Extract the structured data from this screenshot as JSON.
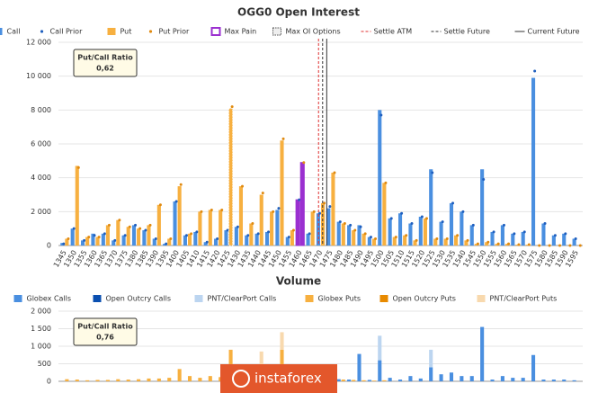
{
  "chart_data": [
    {
      "type": "bar",
      "title": "OGG0 Open Interest",
      "x": [
        1345,
        1350,
        1355,
        1360,
        1365,
        1370,
        1375,
        1380,
        1385,
        1390,
        1395,
        1400,
        1405,
        1410,
        1415,
        1420,
        1425,
        1430,
        1435,
        1440,
        1445,
        1450,
        1455,
        1460,
        1465,
        1470,
        1475,
        1480,
        1485,
        1490,
        1495,
        1500,
        1505,
        1510,
        1515,
        1520,
        1525,
        1530,
        1535,
        1540,
        1545,
        1550,
        1555,
        1560,
        1565,
        1570,
        1575,
        1580,
        1585,
        1590,
        1595
      ],
      "xlim": [
        1342,
        1598
      ],
      "ylim": [
        0,
        12000
      ],
      "yticks": [
        0,
        {
          "value": 2000,
          "label": "2 000"
        },
        {
          "value": 4000,
          "label": "4 000"
        },
        {
          "value": 6000,
          "label": "6 000"
        },
        {
          "value": 8000,
          "label": "8 000"
        },
        {
          "value": 10000,
          "label": "10 000"
        },
        {
          "value": 12000,
          "label": "12 000"
        }
      ],
      "grid": true,
      "series": [
        {
          "name": "Call",
          "color": "#4a8fe0",
          "style": "bar",
          "side": 0,
          "values": [
            150,
            1000,
            300,
            700,
            700,
            300,
            600,
            1200,
            900,
            400,
            100,
            2600,
            600,
            800,
            200,
            400,
            900,
            1100,
            600,
            700,
            800,
            2100,
            500,
            2700,
            700,
            1900,
            2200,
            1400,
            1200,
            1200,
            500,
            8000,
            1600,
            1900,
            1300,
            1700,
            4500,
            1400,
            2500,
            2000,
            1200,
            4500,
            800,
            1200,
            700,
            800,
            9900,
            1300,
            600,
            700,
            400
          ]
        },
        {
          "name": "Call Prior",
          "color": "#1f5fbf",
          "style": "dot",
          "side": 0,
          "values": [
            100,
            1000,
            300,
            600,
            700,
            300,
            600,
            1200,
            900,
            400,
            100,
            2600,
            600,
            800,
            200,
            400,
            900,
            1100,
            600,
            700,
            800,
            2200,
            500,
            2700,
            700,
            1900,
            2300,
            1400,
            1200,
            1100,
            500,
            7700,
            1600,
            1900,
            1300,
            1700,
            4300,
            1400,
            2500,
            2000,
            1200,
            3900,
            800,
            1200,
            700,
            800,
            10300,
            1300,
            600,
            700,
            400
          ]
        },
        {
          "name": "Put",
          "color": "#f7b040",
          "style": "bar",
          "side": 1,
          "values": [
            400,
            4700,
            500,
            500,
            1200,
            1500,
            1100,
            1000,
            1200,
            2400,
            400,
            3500,
            700,
            2000,
            2100,
            2100,
            8100,
            3500,
            1300,
            3000,
            2000,
            6200,
            900,
            4900,
            2000,
            2500,
            4300,
            1300,
            900,
            700,
            400,
            3700,
            500,
            600,
            300,
            1600,
            400,
            400,
            600,
            300,
            100,
            200,
            100,
            100,
            50,
            50,
            0,
            0,
            0,
            0,
            0
          ]
        },
        {
          "name": "Put Prior",
          "color": "#e08a10",
          "style": "dot",
          "side": 1,
          "values": [
            400,
            4600,
            500,
            500,
            1200,
            1500,
            1100,
            1000,
            1200,
            2400,
            400,
            3600,
            700,
            2000,
            2100,
            2100,
            8200,
            3500,
            1300,
            3100,
            2000,
            6300,
            900,
            4900,
            2000,
            2500,
            4300,
            1300,
            900,
            700,
            400,
            3700,
            500,
            600,
            300,
            1600,
            400,
            400,
            600,
            300,
            100,
            200,
            100,
            100,
            50,
            50,
            0,
            0,
            0,
            0,
            0
          ]
        }
      ],
      "max_pain": {
        "name": "Max Pain",
        "color": "#9b30d0",
        "x": 1460
      },
      "max_oi": {
        "name": "Max OI Options",
        "color": "#555555",
        "x": 1425
      },
      "lines": [
        {
          "name": "Settle ATM",
          "color": "#e03030",
          "dash": "3,2",
          "x": 1469
        },
        {
          "name": "Settle Future",
          "color": "#333333",
          "dash": "3,2",
          "x": 1471
        },
        {
          "name": "Current Future",
          "color": "#333333",
          "dash": "",
          "x": 1473
        }
      ],
      "ratio": {
        "label": "Put/Call Ratio",
        "value": "0,62"
      }
    },
    {
      "type": "stacked_bar",
      "title": "Volume",
      "x": [
        1345,
        1350,
        1355,
        1360,
        1365,
        1370,
        1375,
        1380,
        1385,
        1390,
        1395,
        1400,
        1405,
        1410,
        1415,
        1420,
        1425,
        1430,
        1435,
        1440,
        1445,
        1450,
        1455,
        1460,
        1465,
        1470,
        1475,
        1480,
        1485,
        1490,
        1495,
        1500,
        1505,
        1510,
        1515,
        1520,
        1525,
        1530,
        1535,
        1540,
        1545,
        1550,
        1555,
        1560,
        1565,
        1570,
        1575,
        1580,
        1585,
        1590,
        1595
      ],
      "xlim": [
        1342,
        1598
      ],
      "ylim": [
        0,
        2000
      ],
      "yticks": [
        0,
        500,
        {
          "value": 1000,
          "label": "1 000"
        },
        {
          "value": 1500,
          "label": "1 500"
        },
        {
          "value": 2000,
          "label": "2 000"
        }
      ],
      "grid": true,
      "series": [
        {
          "name": "Globex Calls",
          "color": "#4a8fe0",
          "side": 0,
          "values": [
            0,
            0,
            0,
            0,
            0,
            0,
            0,
            0,
            0,
            0,
            0,
            0,
            0,
            0,
            0,
            0,
            0,
            0,
            0,
            0,
            0,
            0,
            0,
            30,
            20,
            50,
            80,
            60,
            50,
            780,
            40,
            600,
            100,
            50,
            150,
            80,
            400,
            200,
            250,
            150,
            150,
            1550,
            50,
            150,
            100,
            100,
            750,
            50,
            50,
            50,
            30
          ]
        },
        {
          "name": "Open Outcry Calls",
          "color": "#0a4fb0",
          "side": 0,
          "values": [
            0,
            0,
            0,
            0,
            0,
            0,
            0,
            0,
            0,
            0,
            0,
            0,
            0,
            0,
            0,
            0,
            0,
            0,
            0,
            0,
            0,
            0,
            0,
            0,
            0,
            0,
            0,
            0,
            0,
            0,
            0,
            0,
            0,
            0,
            0,
            0,
            0,
            0,
            0,
            0,
            0,
            0,
            0,
            0,
            0,
            0,
            0,
            0,
            0,
            0,
            0
          ]
        },
        {
          "name": "PNT/ClearPort Calls",
          "color": "#bcd5f0",
          "side": 0,
          "values": [
            0,
            0,
            0,
            0,
            0,
            0,
            0,
            0,
            0,
            0,
            0,
            0,
            0,
            0,
            0,
            0,
            0,
            0,
            0,
            0,
            0,
            0,
            0,
            0,
            0,
            0,
            0,
            0,
            0,
            0,
            0,
            700,
            0,
            0,
            0,
            0,
            500,
            0,
            0,
            0,
            0,
            0,
            0,
            0,
            0,
            0,
            0,
            0,
            0,
            0,
            0
          ]
        },
        {
          "name": "Globex Puts",
          "color": "#f7b040",
          "side": 1,
          "values": [
            60,
            50,
            30,
            40,
            40,
            60,
            50,
            60,
            80,
            80,
            100,
            350,
            150,
            100,
            150,
            120,
            900,
            120,
            150,
            100,
            200,
            900,
            100,
            150,
            80,
            100,
            50,
            50,
            40,
            30,
            20,
            30,
            0,
            0,
            0,
            0,
            0,
            0,
            0,
            0,
            0,
            0,
            0,
            0,
            0,
            0,
            0,
            0,
            0,
            0,
            0
          ]
        },
        {
          "name": "Open Outcry Puts",
          "color": "#e88a00",
          "side": 1,
          "values": [
            0,
            0,
            0,
            0,
            0,
            0,
            0,
            0,
            0,
            0,
            0,
            0,
            0,
            0,
            0,
            0,
            0,
            0,
            0,
            0,
            0,
            0,
            0,
            0,
            0,
            0,
            0,
            0,
            0,
            0,
            0,
            0,
            0,
            0,
            0,
            0,
            0,
            0,
            0,
            0,
            0,
            0,
            0,
            0,
            0,
            0,
            0,
            0,
            0,
            0,
            0
          ]
        },
        {
          "name": "PNT/ClearPort Puts",
          "color": "#f8d9ae",
          "side": 1,
          "values": [
            0,
            0,
            0,
            0,
            0,
            0,
            0,
            0,
            0,
            0,
            0,
            0,
            0,
            0,
            0,
            0,
            0,
            0,
            0,
            750,
            0,
            500,
            0,
            0,
            0,
            0,
            0,
            0,
            0,
            0,
            0,
            0,
            0,
            0,
            0,
            0,
            0,
            0,
            0,
            0,
            0,
            0,
            0,
            0,
            0,
            0,
            0,
            0,
            0,
            0,
            0
          ]
        }
      ],
      "ratio": {
        "label": "Put/Call Ratio",
        "value": "0,76"
      }
    }
  ],
  "watermark": "instaforex"
}
